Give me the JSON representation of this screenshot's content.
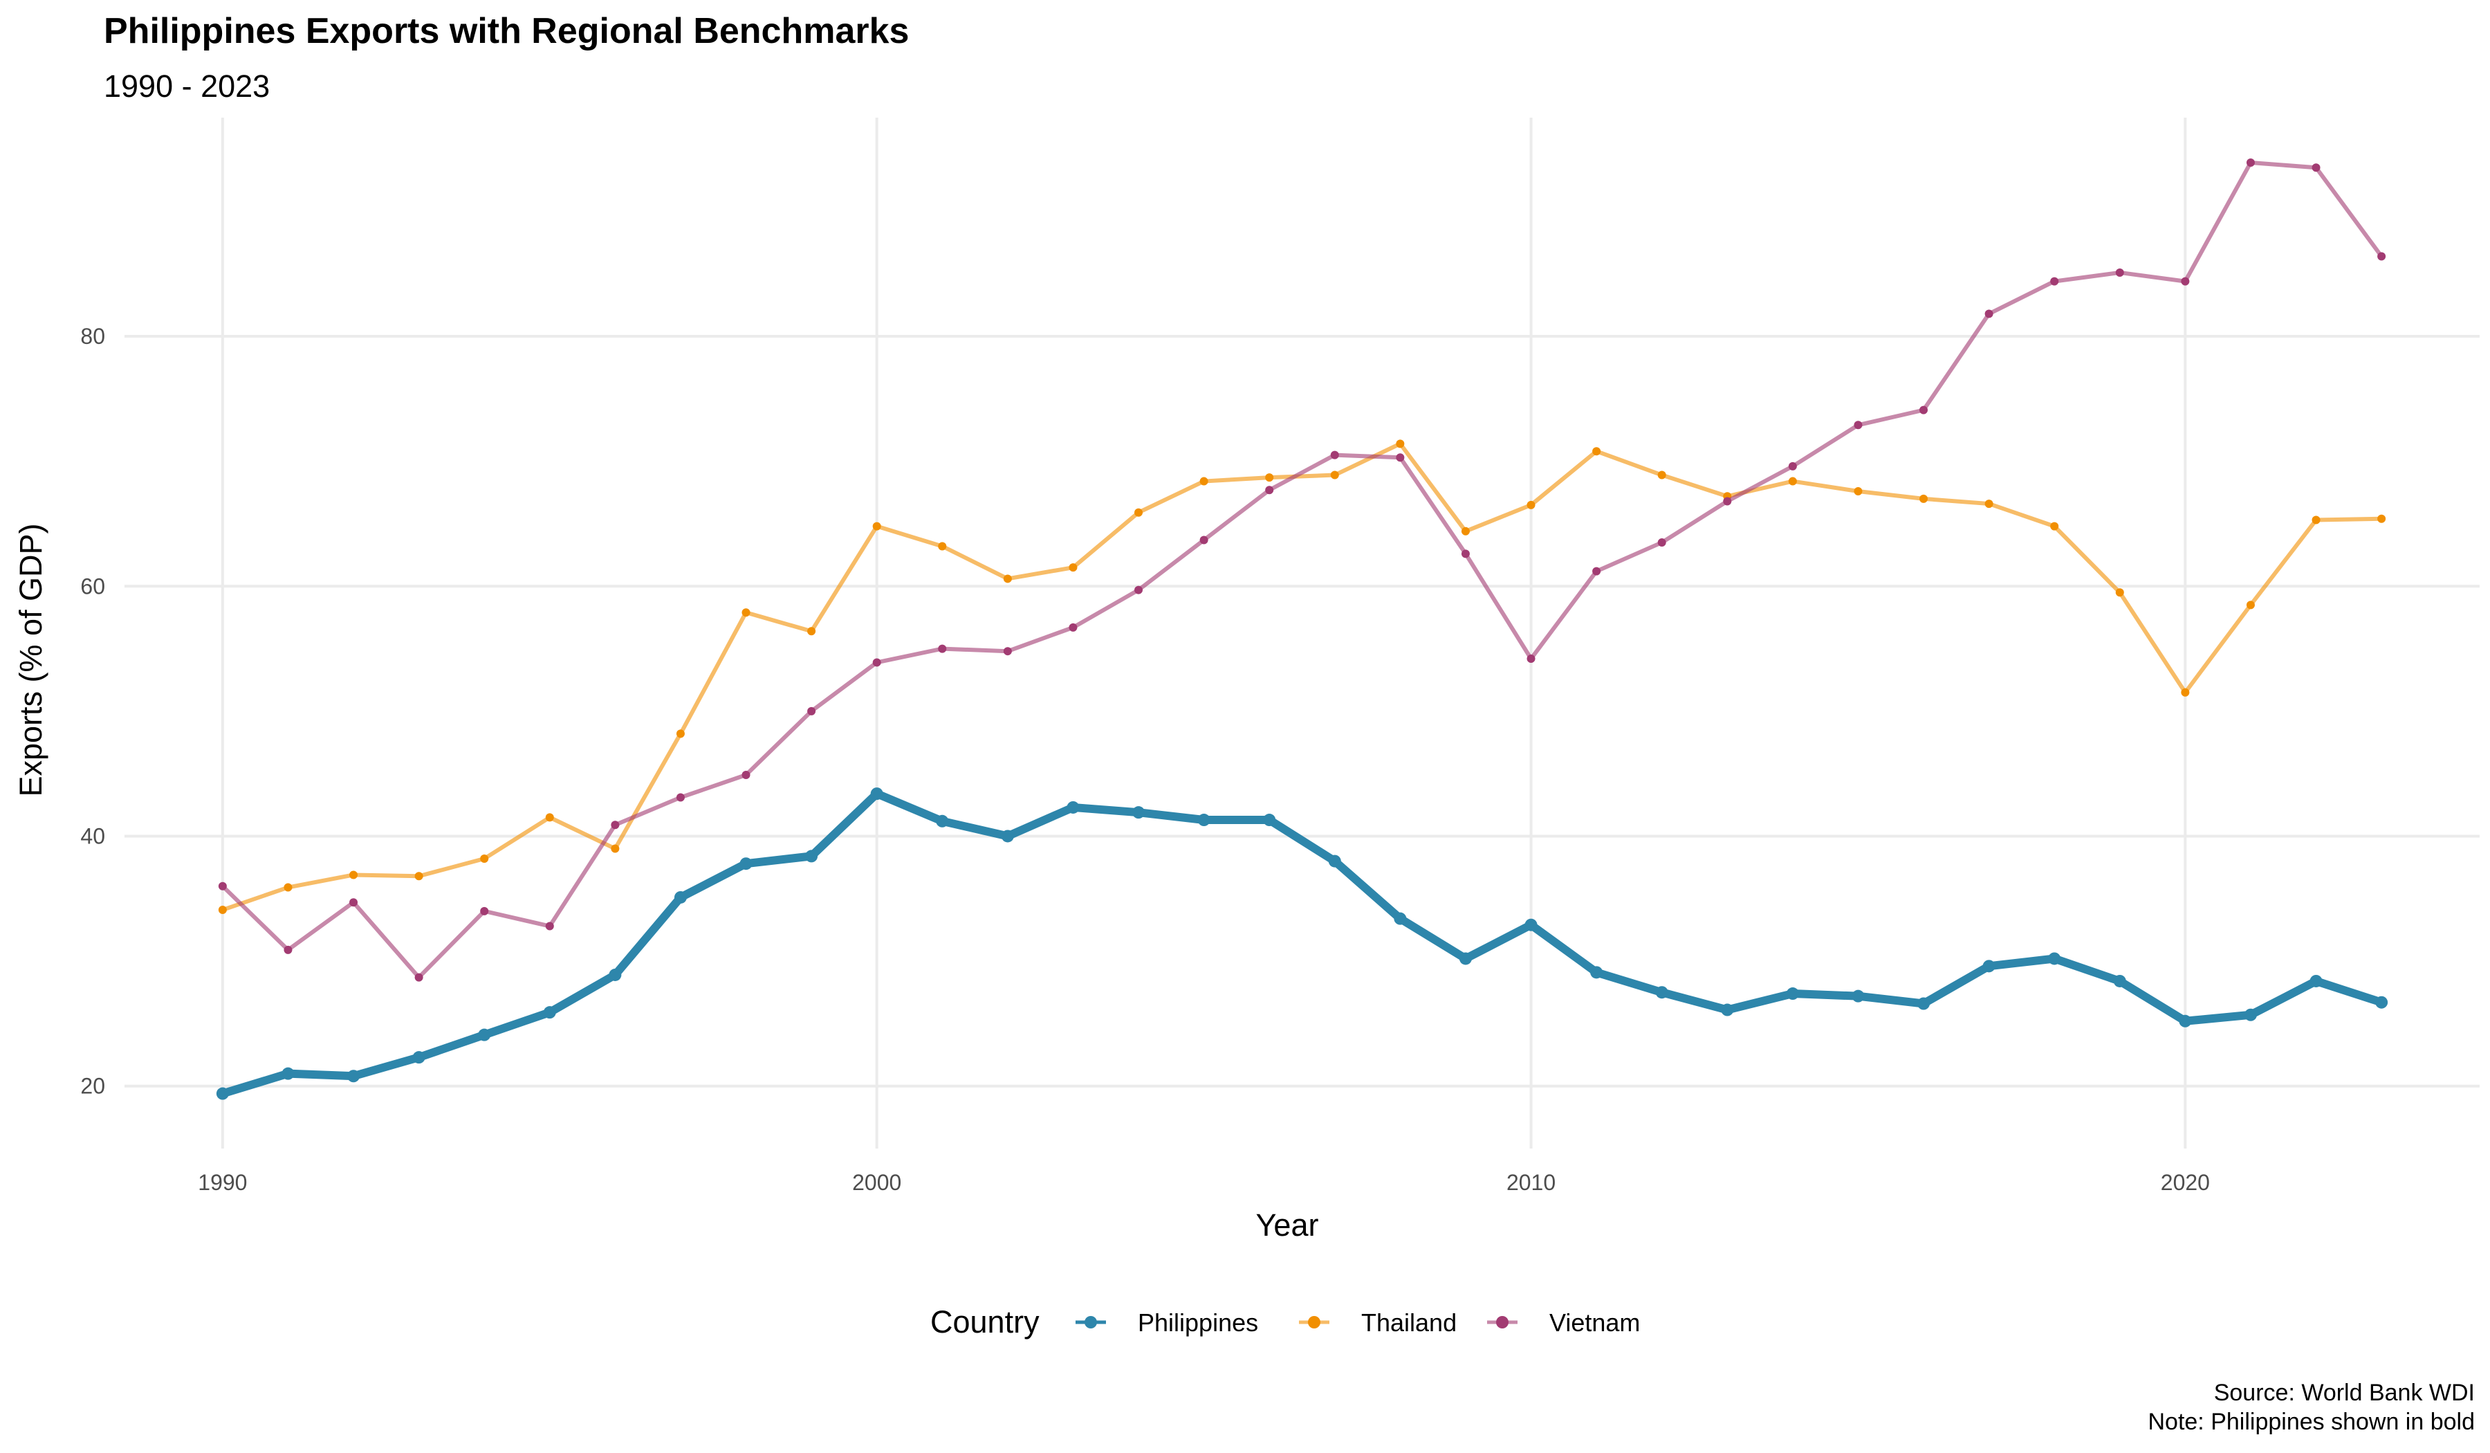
{
  "chart_data": {
    "type": "line",
    "title": "Philippines Exports with Regional Benchmarks",
    "subtitle": "1990 - 2023",
    "xlabel": "Year",
    "ylabel": "Exports (% of GDP)",
    "xlim": [
      1988.5,
      2024.5
    ],
    "ylim": [
      15,
      97.5
    ],
    "x_ticks": [
      1990,
      2000,
      2010,
      2020
    ],
    "y_ticks": [
      20,
      40,
      60,
      80
    ],
    "grid": true,
    "legend": {
      "title": "Country",
      "position": "bottom"
    },
    "caption": [
      "Source: World Bank WDI",
      "Note: Philippines shown in bold"
    ],
    "x": [
      1990,
      1991,
      1992,
      1993,
      1994,
      1995,
      1996,
      1997,
      1998,
      1999,
      2000,
      2001,
      2002,
      2003,
      2004,
      2005,
      2006,
      2007,
      2008,
      2009,
      2010,
      2011,
      2012,
      2013,
      2014,
      2015,
      2016,
      2017,
      2018,
      2019,
      2020,
      2021,
      2022,
      2023
    ],
    "series": [
      {
        "name": "Philippines",
        "color": "#2E86AB",
        "bold": true,
        "values": [
          19.4,
          21.0,
          20.8,
          22.3,
          24.1,
          25.9,
          28.9,
          35.1,
          37.8,
          38.4,
          43.4,
          41.2,
          40.0,
          42.3,
          41.9,
          41.3,
          41.3,
          38.0,
          33.4,
          30.2,
          32.9,
          29.1,
          27.5,
          26.1,
          27.4,
          27.2,
          26.6,
          29.6,
          30.2,
          28.4,
          25.2,
          25.7,
          28.4,
          26.7
        ]
      },
      {
        "name": "Thailand",
        "color": "#F18F01",
        "bold": false,
        "values": [
          34.1,
          35.9,
          36.9,
          36.8,
          38.2,
          41.5,
          39.0,
          48.2,
          57.9,
          56.4,
          64.8,
          63.2,
          60.6,
          61.5,
          65.9,
          68.4,
          68.7,
          68.9,
          71.4,
          64.4,
          66.5,
          70.8,
          68.9,
          67.2,
          68.4,
          67.6,
          67.0,
          66.6,
          64.8,
          59.5,
          51.5,
          58.5,
          65.3,
          65.4
        ]
      },
      {
        "name": "Vietnam",
        "color": "#A23B72",
        "bold": false,
        "values": [
          36.0,
          30.9,
          34.7,
          28.7,
          34.0,
          32.8,
          40.9,
          43.1,
          44.9,
          50.0,
          53.9,
          55.0,
          54.8,
          56.7,
          59.7,
          63.7,
          67.7,
          70.5,
          70.3,
          62.6,
          54.2,
          61.2,
          63.5,
          66.8,
          69.6,
          72.9,
          74.1,
          81.8,
          84.4,
          85.1,
          84.4,
          93.9,
          93.5,
          86.4
        ]
      }
    ]
  }
}
